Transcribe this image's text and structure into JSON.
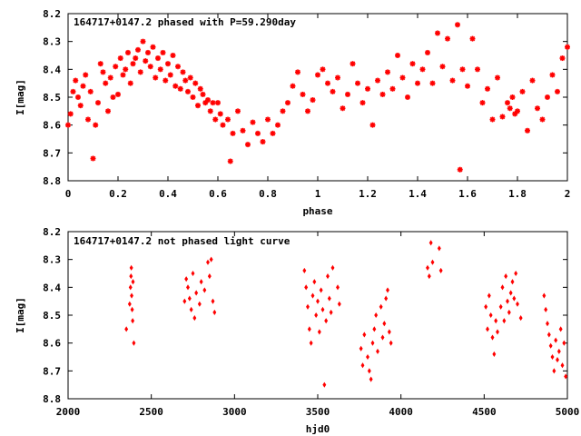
{
  "chart_data": [
    {
      "type": "scatter",
      "title": "164717+0147.2 phased with P=59.290day",
      "xlabel": "phase",
      "ylabel": "I[mag]",
      "xlim": [
        0,
        2
      ],
      "ylim": [
        8.2,
        8.8
      ],
      "y_inverted": true,
      "x_ticks": [
        "0",
        "0.2",
        "0.4",
        "0.6",
        "0.8",
        "1",
        "1.2",
        "1.4",
        "1.6",
        "1.8",
        "2"
      ],
      "y_ticks": [
        "8.2",
        "8.3",
        "8.4",
        "8.5",
        "8.6",
        "8.7",
        "8.8"
      ],
      "marker": "cross",
      "color": "#ff0000",
      "grid": false,
      "points": [
        [
          0.0,
          8.6
        ],
        [
          0.01,
          8.56
        ],
        [
          0.02,
          8.48
        ],
        [
          0.03,
          8.44
        ],
        [
          0.04,
          8.5
        ],
        [
          0.05,
          8.53
        ],
        [
          0.06,
          8.46
        ],
        [
          0.07,
          8.42
        ],
        [
          0.08,
          8.58
        ],
        [
          0.09,
          8.48
        ],
        [
          0.1,
          8.72
        ],
        [
          0.11,
          8.6
        ],
        [
          0.12,
          8.52
        ],
        [
          0.13,
          8.38
        ],
        [
          0.14,
          8.41
        ],
        [
          0.15,
          8.45
        ],
        [
          0.16,
          8.55
        ],
        [
          0.17,
          8.43
        ],
        [
          0.18,
          8.5
        ],
        [
          0.19,
          8.39
        ],
        [
          0.2,
          8.49
        ],
        [
          0.21,
          8.36
        ],
        [
          0.22,
          8.42
        ],
        [
          0.23,
          8.4
        ],
        [
          0.24,
          8.34
        ],
        [
          0.25,
          8.45
        ],
        [
          0.26,
          8.38
        ],
        [
          0.27,
          8.36
        ],
        [
          0.28,
          8.33
        ],
        [
          0.29,
          8.41
        ],
        [
          0.3,
          8.3
        ],
        [
          0.31,
          8.37
        ],
        [
          0.32,
          8.34
        ],
        [
          0.33,
          8.39
        ],
        [
          0.34,
          8.32
        ],
        [
          0.35,
          8.43
        ],
        [
          0.36,
          8.36
        ],
        [
          0.37,
          8.4
        ],
        [
          0.38,
          8.34
        ],
        [
          0.39,
          8.44
        ],
        [
          0.4,
          8.38
        ],
        [
          0.41,
          8.42
        ],
        [
          0.42,
          8.35
        ],
        [
          0.43,
          8.46
        ],
        [
          0.44,
          8.39
        ],
        [
          0.45,
          8.47
        ],
        [
          0.46,
          8.41
        ],
        [
          0.47,
          8.44
        ],
        [
          0.48,
          8.48
        ],
        [
          0.49,
          8.43
        ],
        [
          0.5,
          8.5
        ],
        [
          0.51,
          8.45
        ],
        [
          0.52,
          8.53
        ],
        [
          0.53,
          8.47
        ],
        [
          0.54,
          8.49
        ],
        [
          0.55,
          8.52
        ],
        [
          0.56,
          8.51
        ],
        [
          0.57,
          8.55
        ],
        [
          0.58,
          8.52
        ],
        [
          0.59,
          8.58
        ],
        [
          0.6,
          8.52
        ],
        [
          0.61,
          8.56
        ],
        [
          0.62,
          8.6
        ],
        [
          0.64,
          8.58
        ],
        [
          0.65,
          8.73
        ],
        [
          0.66,
          8.63
        ],
        [
          0.68,
          8.55
        ],
        [
          0.7,
          8.62
        ],
        [
          0.72,
          8.67
        ],
        [
          0.74,
          8.59
        ],
        [
          0.76,
          8.63
        ],
        [
          0.78,
          8.66
        ],
        [
          0.8,
          8.58
        ],
        [
          0.82,
          8.63
        ],
        [
          0.84,
          8.6
        ],
        [
          0.86,
          8.55
        ],
        [
          0.88,
          8.52
        ],
        [
          0.9,
          8.46
        ],
        [
          0.92,
          8.41
        ],
        [
          0.94,
          8.49
        ],
        [
          0.96,
          8.55
        ],
        [
          0.98,
          8.51
        ],
        [
          1.0,
          8.42
        ],
        [
          1.02,
          8.4
        ],
        [
          1.04,
          8.45
        ],
        [
          1.06,
          8.48
        ],
        [
          1.08,
          8.43
        ],
        [
          1.1,
          8.54
        ],
        [
          1.12,
          8.49
        ],
        [
          1.14,
          8.38
        ],
        [
          1.16,
          8.45
        ],
        [
          1.18,
          8.52
        ],
        [
          1.2,
          8.47
        ],
        [
          1.22,
          8.6
        ],
        [
          1.24,
          8.44
        ],
        [
          1.26,
          8.49
        ],
        [
          1.28,
          8.41
        ],
        [
          1.3,
          8.47
        ],
        [
          1.32,
          8.35
        ],
        [
          1.34,
          8.43
        ],
        [
          1.36,
          8.5
        ],
        [
          1.38,
          8.38
        ],
        [
          1.4,
          8.45
        ],
        [
          1.42,
          8.4
        ],
        [
          1.44,
          8.34
        ],
        [
          1.46,
          8.45
        ],
        [
          1.48,
          8.27
        ],
        [
          1.5,
          8.39
        ],
        [
          1.52,
          8.29
        ],
        [
          1.54,
          8.44
        ],
        [
          1.56,
          8.24
        ],
        [
          1.57,
          8.76
        ],
        [
          1.58,
          8.4
        ],
        [
          1.6,
          8.46
        ],
        [
          1.62,
          8.29
        ],
        [
          1.64,
          8.4
        ],
        [
          1.66,
          8.52
        ],
        [
          1.68,
          8.47
        ],
        [
          1.7,
          8.58
        ],
        [
          1.72,
          8.43
        ],
        [
          1.74,
          8.57
        ],
        [
          1.76,
          8.52
        ],
        [
          1.77,
          8.54
        ],
        [
          1.78,
          8.5
        ],
        [
          1.79,
          8.56
        ],
        [
          1.8,
          8.55
        ],
        [
          1.82,
          8.48
        ],
        [
          1.84,
          8.62
        ],
        [
          1.86,
          8.44
        ],
        [
          1.88,
          8.54
        ],
        [
          1.9,
          8.58
        ],
        [
          1.92,
          8.5
        ],
        [
          1.94,
          8.42
        ],
        [
          1.96,
          8.48
        ],
        [
          1.98,
          8.36
        ],
        [
          2.0,
          8.32
        ]
      ]
    },
    {
      "type": "scatter",
      "title": "164717+0147.2 not phased light curve",
      "xlabel": "hjd0",
      "ylabel": "I[mag]",
      "xlim": [
        2000,
        5000
      ],
      "ylim": [
        8.2,
        8.8
      ],
      "y_inverted": true,
      "x_ticks": [
        "2000",
        "2500",
        "3000",
        "3500",
        "4000",
        "4500",
        "5000"
      ],
      "y_ticks": [
        "8.2",
        "8.3",
        "8.4",
        "8.5",
        "8.6",
        "8.7",
        "8.8"
      ],
      "marker": "diamond",
      "color": "#ff0000",
      "grid": false,
      "points": [
        [
          2350,
          8.55
        ],
        [
          2370,
          8.46
        ],
        [
          2375,
          8.4
        ],
        [
          2378,
          8.36
        ],
        [
          2380,
          8.33
        ],
        [
          2382,
          8.43
        ],
        [
          2385,
          8.48
        ],
        [
          2388,
          8.52
        ],
        [
          2390,
          8.38
        ],
        [
          2395,
          8.6
        ],
        [
          2700,
          8.45
        ],
        [
          2710,
          8.37
        ],
        [
          2720,
          8.4
        ],
        [
          2730,
          8.44
        ],
        [
          2740,
          8.48
        ],
        [
          2750,
          8.35
        ],
        [
          2760,
          8.51
        ],
        [
          2770,
          8.42
        ],
        [
          2790,
          8.46
        ],
        [
          2800,
          8.38
        ],
        [
          2820,
          8.41
        ],
        [
          2840,
          8.31
        ],
        [
          2850,
          8.36
        ],
        [
          2860,
          8.3
        ],
        [
          2870,
          8.45
        ],
        [
          2880,
          8.49
        ],
        [
          3420,
          8.34
        ],
        [
          3430,
          8.4
        ],
        [
          3440,
          8.47
        ],
        [
          3450,
          8.55
        ],
        [
          3460,
          8.6
        ],
        [
          3470,
          8.43
        ],
        [
          3480,
          8.38
        ],
        [
          3490,
          8.5
        ],
        [
          3500,
          8.45
        ],
        [
          3510,
          8.56
        ],
        [
          3520,
          8.41
        ],
        [
          3530,
          8.48
        ],
        [
          3540,
          8.75
        ],
        [
          3550,
          8.52
        ],
        [
          3560,
          8.36
        ],
        [
          3570,
          8.44
        ],
        [
          3580,
          8.49
        ],
        [
          3590,
          8.33
        ],
        [
          3620,
          8.4
        ],
        [
          3630,
          8.46
        ],
        [
          3760,
          8.62
        ],
        [
          3770,
          8.68
        ],
        [
          3780,
          8.57
        ],
        [
          3800,
          8.65
        ],
        [
          3810,
          8.7
        ],
        [
          3820,
          8.73
        ],
        [
          3830,
          8.6
        ],
        [
          3840,
          8.55
        ],
        [
          3850,
          8.5
        ],
        [
          3860,
          8.63
        ],
        [
          3880,
          8.47
        ],
        [
          3890,
          8.58
        ],
        [
          3900,
          8.53
        ],
        [
          3910,
          8.44
        ],
        [
          3920,
          8.41
        ],
        [
          3930,
          8.56
        ],
        [
          3940,
          8.6
        ],
        [
          4160,
          8.33
        ],
        [
          4170,
          8.36
        ],
        [
          4180,
          8.24
        ],
        [
          4190,
          8.31
        ],
        [
          4230,
          8.26
        ],
        [
          4240,
          8.34
        ],
        [
          4510,
          8.47
        ],
        [
          4520,
          8.55
        ],
        [
          4530,
          8.43
        ],
        [
          4540,
          8.5
        ],
        [
          4550,
          8.58
        ],
        [
          4560,
          8.64
        ],
        [
          4570,
          8.52
        ],
        [
          4580,
          8.56
        ],
        [
          4600,
          8.47
        ],
        [
          4610,
          8.4
        ],
        [
          4620,
          8.52
        ],
        [
          4630,
          8.36
        ],
        [
          4640,
          8.45
        ],
        [
          4650,
          8.49
        ],
        [
          4660,
          8.42
        ],
        [
          4670,
          8.38
        ],
        [
          4680,
          8.44
        ],
        [
          4690,
          8.35
        ],
        [
          4700,
          8.46
        ],
        [
          4720,
          8.51
        ],
        [
          4860,
          8.43
        ],
        [
          4870,
          8.48
        ],
        [
          4880,
          8.53
        ],
        [
          4890,
          8.57
        ],
        [
          4900,
          8.61
        ],
        [
          4910,
          8.65
        ],
        [
          4920,
          8.7
        ],
        [
          4930,
          8.59
        ],
        [
          4940,
          8.66
        ],
        [
          4950,
          8.63
        ],
        [
          4960,
          8.55
        ],
        [
          4970,
          8.68
        ],
        [
          4980,
          8.6
        ],
        [
          4990,
          8.72
        ]
      ]
    }
  ]
}
